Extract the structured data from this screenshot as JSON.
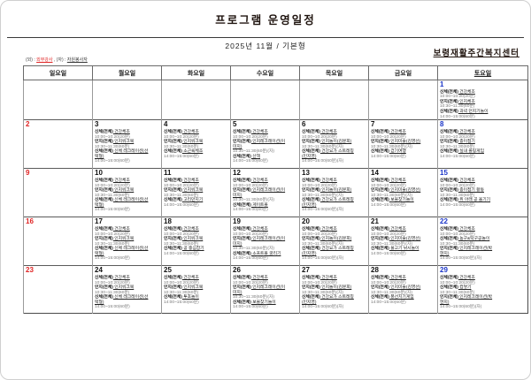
{
  "page": {
    "title": "프로그램 운영일정",
    "subtitle": "2025년 11월 / 기본형",
    "center_name": "보령재활주간복지센터",
    "legend": [
      {
        "prefix": "(외) : ",
        "term": "외부강사"
      },
      {
        "prefix": " , (자) : ",
        "term": "자원봉사자"
      }
    ]
  },
  "colors": {
    "sunday_red": "#e02424",
    "saturday_blue": "#1c36c8",
    "time_gray": "#777777"
  },
  "calendar": {
    "day_headers": [
      {
        "label": "일요일",
        "type": "sun"
      },
      {
        "label": "월요일",
        "type": "wk"
      },
      {
        "label": "화요일",
        "type": "wk"
      },
      {
        "label": "수요일",
        "type": "wk"
      },
      {
        "label": "목요일",
        "type": "wk"
      },
      {
        "label": "금요일",
        "type": "wk"
      },
      {
        "label": "토요일",
        "type": "sat"
      }
    ],
    "weeks": [
      [
        {
          "d": "",
          "c": "sun",
          "lines": []
        },
        {
          "d": "",
          "c": "wk",
          "lines": []
        },
        {
          "d": "",
          "c": "wk",
          "lines": []
        },
        {
          "d": "",
          "c": "wk",
          "lines": []
        },
        {
          "d": "",
          "c": "wk",
          "lines": []
        },
        {
          "d": "",
          "c": "wk",
          "lines": []
        },
        {
          "d": "1",
          "c": "sat",
          "lines": [
            [
              "p",
              "신체(전체)",
              "건강체조"
            ],
            [
              "t",
              "10:00~10:20(20분)"
            ],
            [
              "p",
              "인지(전체)",
              "인지체조"
            ],
            [
              "t",
              "10:30~11:30(60분)"
            ],
            [
              "p",
              "신체(전체)",
              "과녁 던지기놀이"
            ],
            [
              "t",
              "14:00~15:00(60분)"
            ]
          ]
        }
      ],
      [
        {
          "d": "2",
          "c": "sun",
          "lines": []
        },
        {
          "d": "3",
          "c": "wk",
          "lines": [
            [
              "p",
              "신체(전체)",
              "건강체조"
            ],
            [
              "t",
              "10:00~10:20(20분)"
            ],
            [
              "p",
              "인지(전체)",
              "인지워크북"
            ],
            [
              "t",
              "10:30~11:30(60분)"
            ],
            [
              "p",
              "신체(전체)",
              "신체 레크레이션(선"
            ],
            [
              "w",
              "택형)"
            ],
            [
              "t",
              "14:00~15:00(60분)"
            ]
          ]
        },
        {
          "d": "4",
          "c": "wk",
          "lines": [
            [
              "p",
              "신체(전체)",
              "건강체조"
            ],
            [
              "t",
              "10:00~10:20(20분)"
            ],
            [
              "p",
              "인지(전체)",
              "인지워크북"
            ],
            [
              "t",
              "10:30~11:30(60분)"
            ],
            [
              "p",
              "신체(전체)",
              "소근육체조"
            ],
            [
              "t",
              "14:00~15:00(60분)"
            ]
          ]
        },
        {
          "d": "5",
          "c": "wk",
          "lines": [
            [
              "p",
              "신체(전체)",
              "건강체조"
            ],
            [
              "t",
              "10:00~10:20(20분)"
            ],
            [
              "p",
              "인지(전체)",
              "인지레크레이션(이"
            ],
            [
              "w",
              "미지)"
            ],
            [
              "t",
              "10:30~11:30(60분)(자)"
            ],
            [
              "p",
              "신체(전체)",
              "산책"
            ],
            [
              "t",
              "14:00~15:00(60분)"
            ]
          ]
        },
        {
          "d": "6",
          "c": "wk",
          "lines": [
            [
              "p",
              "신체(전체)",
              "건강체조"
            ],
            [
              "t",
              "10:00~10:20(20분)"
            ],
            [
              "p",
              "인지(전체)",
              "인지놀이(김문희)"
            ],
            [
              "t",
              "10:30~11:30(60분)(자)"
            ],
            [
              "p",
              "신체(전체)",
              "건강요가 스트레칭"
            ],
            [
              "w",
              "(민지영)"
            ],
            [
              "t",
              "14:00~15:00(60분)(자)"
            ]
          ]
        },
        {
          "d": "7",
          "c": "wk",
          "lines": [
            [
              "p",
              "신체(전체)",
              "건강체조"
            ],
            [
              "t",
              "10:00~10:20(20분)"
            ],
            [
              "p",
              "인지(전체)",
              "인지미술(김영선)"
            ],
            [
              "t",
              "10:30~11:30(60분)(자)"
            ],
            [
              "p",
              "신체(전체)",
              "걷기여행"
            ],
            [
              "t",
              "14:00~15:00(60분)"
            ]
          ]
        },
        {
          "d": "8",
          "c": "sat",
          "lines": [
            [
              "p",
              "신체(전체)",
              "건강체조"
            ],
            [
              "t",
              "10:00~10:20(20분)"
            ],
            [
              "p",
              "인지(전체)",
              "종이접기"
            ],
            [
              "t",
              "10:30~11:30(60분)"
            ],
            [
              "p",
              "신체(전체)",
              "실내 볼링게임"
            ],
            [
              "t",
              "14:00~15:00(60분)"
            ]
          ]
        }
      ],
      [
        {
          "d": "9",
          "c": "sun",
          "lines": []
        },
        {
          "d": "10",
          "c": "wk",
          "lines": [
            [
              "p",
              "신체(전체)",
              "건강체조"
            ],
            [
              "t",
              "10:00~10:20(20분)"
            ],
            [
              "p",
              "인지(전체)",
              "인지워크북"
            ],
            [
              "t",
              "10:30~11:30(60분)"
            ],
            [
              "p",
              "신체(전체)",
              "신체 레크레이션(선"
            ],
            [
              "w",
              "택형)"
            ],
            [
              "t",
              "14:00~15:00(60분)"
            ]
          ]
        },
        {
          "d": "11",
          "c": "wk",
          "lines": [
            [
              "p",
              "신체(전체)",
              "건강체조"
            ],
            [
              "t",
              "10:00~10:20(20분)"
            ],
            [
              "p",
              "인지(전체)",
              "인지워크북"
            ],
            [
              "t",
              "10:30~11:30(60분)"
            ],
            [
              "p",
              "신체(전체)",
              "고리던지기"
            ],
            [
              "t",
              "14:00~15:00(60분)"
            ]
          ]
        },
        {
          "d": "12",
          "c": "wk",
          "lines": [
            [
              "p",
              "신체(전체)",
              "건강체조"
            ],
            [
              "t",
              "10:00~10:20(20분)"
            ],
            [
              "p",
              "인지(전체)",
              "인지레크레이션(이"
            ],
            [
              "w",
              "미지)"
            ],
            [
              "t",
              "10:30~11:30(60분)(자)"
            ],
            [
              "p",
              "신체(전체)",
              "게이트볼"
            ],
            [
              "t",
              "14:00~15:00(60분)"
            ]
          ]
        },
        {
          "d": "13",
          "c": "wk",
          "lines": [
            [
              "p",
              "신체(전체)",
              "건강체조"
            ],
            [
              "t",
              "10:00~10:20(20분)"
            ],
            [
              "p",
              "인지(전체)",
              "인지놀이(김문희)"
            ],
            [
              "t",
              "10:30~11:30(60분)(자)"
            ],
            [
              "p",
              "신체(전체)",
              "건강요가 스트레칭"
            ],
            [
              "w",
              "(민지영)"
            ],
            [
              "t",
              "14:00~15:00(60분)(자)"
            ]
          ]
        },
        {
          "d": "14",
          "c": "wk",
          "lines": [
            [
              "p",
              "신체(전체)",
              "건강체조"
            ],
            [
              "t",
              "10:00~10:20(20분)"
            ],
            [
              "p",
              "인지(전체)",
              "인지미술(김영선)"
            ],
            [
              "t",
              "10:30~11:30(60분)(자)"
            ],
            [
              "p",
              "신체(전체)",
              "보물찾기놀이"
            ],
            [
              "t",
              "14:00~15:00(60분)"
            ]
          ]
        },
        {
          "d": "15",
          "c": "sat",
          "lines": [
            [
              "p",
              "신체(전체)",
              "건강체조"
            ],
            [
              "t",
              "10:00~10:20(20분)"
            ],
            [
              "p",
              "인지(전체)",
              "종이접기 활동"
            ],
            [
              "t",
              "10:30~11:30(60분)"
            ],
            [
              "p",
              "신체(전체)",
              "위 아래 공 옮기기"
            ],
            [
              "t",
              "14:00~15:00(60분)"
            ]
          ]
        }
      ],
      [
        {
          "d": "16",
          "c": "sun",
          "lines": []
        },
        {
          "d": "17",
          "c": "wk",
          "lines": [
            [
              "p",
              "신체(전체)",
              "건강체조"
            ],
            [
              "t",
              "10:00~10:20(20분)"
            ],
            [
              "p",
              "인지(전체)",
              "인지워크북"
            ],
            [
              "t",
              "10:30~11:30(60분)"
            ],
            [
              "p",
              "신체(전체)",
              "신체 레크레이션(선"
            ],
            [
              "w",
              "택형)"
            ],
            [
              "t",
              "14:00~15:00(60분)"
            ]
          ]
        },
        {
          "d": "18",
          "c": "wk",
          "lines": [
            [
              "p",
              "신체(전체)",
              "건강체조"
            ],
            [
              "t",
              "10:00~10:20(20분)"
            ],
            [
              "p",
              "인지(전체)",
              "인지워크북"
            ],
            [
              "t",
              "10:30~11:30(60분)"
            ],
            [
              "p",
              "신체(전체)",
              "공 중심잡기"
            ],
            [
              "t",
              "14:00~15:00(60분)"
            ]
          ]
        },
        {
          "d": "19",
          "c": "wk",
          "lines": [
            [
              "p",
              "신체(전체)",
              "건강체조"
            ],
            [
              "t",
              "10:00~10:20(20분)"
            ],
            [
              "p",
              "인지(전체)",
              "인지레크레이션(이"
            ],
            [
              "w",
              "미지)"
            ],
            [
              "t",
              "10:30~11:30(60분)(자)"
            ],
            [
              "p",
              "신체(전체)",
              "소프트볼 굴리기"
            ],
            [
              "t",
              "14:00~15:00(60분)"
            ]
          ]
        },
        {
          "d": "20",
          "c": "wk",
          "lines": [
            [
              "p",
              "신체(전체)",
              "건강체조"
            ],
            [
              "t",
              "10:00~10:20(20분)"
            ],
            [
              "p",
              "인지(전체)",
              "인지놀이(김문희)"
            ],
            [
              "t",
              "10:30~11:30(60분)(자)"
            ],
            [
              "p",
              "신체(전체)",
              "건강요가 스트레칭"
            ],
            [
              "w",
              "(민지영)"
            ],
            [
              "t",
              "14:00~15:00(60분)(자)"
            ]
          ]
        },
        {
          "d": "21",
          "c": "wk",
          "lines": [
            [
              "p",
              "신체(전체)",
              "건강체조"
            ],
            [
              "t",
              "10:00~10:20(20분)"
            ],
            [
              "p",
              "인지(전체)",
              "인지미술(김영선)"
            ],
            [
              "t",
              "10:30~11:30(60분)(자)"
            ],
            [
              "p",
              "신체(전체)",
              "물고기 낚시놀이"
            ],
            [
              "t",
              "14:00~15:00(60분)"
            ]
          ]
        },
        {
          "d": "22",
          "c": "sat",
          "lines": [
            [
              "p",
              "신체(전체)",
              "건강체조"
            ],
            [
              "t",
              "10:00~10:20(20분)"
            ],
            [
              "p",
              "신체(전체)",
              "농구&탁구공놀이"
            ],
            [
              "t",
              "10:30~11:30(60분)"
            ],
            [
              "p",
              "인지(전체)",
              "인지레크레이션(박"
            ],
            [
              "w",
              "현지)"
            ],
            [
              "t",
              "14:00~15:00(60분)(자)"
            ]
          ]
        }
      ],
      [
        {
          "d": "23",
          "c": "sun",
          "lines": []
        },
        {
          "d": "24",
          "c": "wk",
          "lines": [
            [
              "p",
              "신체(전체)",
              "건강체조"
            ],
            [
              "t",
              "10:00~10:20(20분)"
            ],
            [
              "p",
              "인지(전체)",
              "인지워크북"
            ],
            [
              "t",
              "10:30~11:30(60분)"
            ],
            [
              "p",
              "신체(전체)",
              "신체 레크레이션(선"
            ],
            [
              "w",
              "택형)"
            ],
            [
              "t",
              "14:00~15:00(60분)"
            ]
          ]
        },
        {
          "d": "25",
          "c": "wk",
          "lines": [
            [
              "p",
              "신체(전체)",
              "건강체조"
            ],
            [
              "t",
              "10:00~10:20(20분)"
            ],
            [
              "p",
              "인지(전체)",
              "인지워크북"
            ],
            [
              "t",
              "10:30~11:30(60분)"
            ],
            [
              "p",
              "신체(전체)",
              "투호놀이"
            ],
            [
              "t",
              "14:00~15:00(60분)"
            ]
          ]
        },
        {
          "d": "26",
          "c": "wk",
          "lines": [
            [
              "p",
              "신체(전체)",
              "건강체조"
            ],
            [
              "t",
              "10:00~10:20(20분)"
            ],
            [
              "p",
              "인지(전체)",
              "인지레크레이션(이"
            ],
            [
              "w",
              "미지)"
            ],
            [
              "t",
              "10:30~11:30(60분)(자)"
            ],
            [
              "p",
              "신체(전체)",
              "보물찾기놀이"
            ],
            [
              "t",
              "14:00~15:00(60분)"
            ]
          ]
        },
        {
          "d": "27",
          "c": "wk",
          "lines": [
            [
              "p",
              "신체(전체)",
              "건강체조"
            ],
            [
              "t",
              "10:00~10:20(20분)"
            ],
            [
              "p",
              "인지(전체)",
              "인지놀이(김문희)"
            ],
            [
              "t",
              "10:30~11:30(60분)(자)"
            ],
            [
              "p",
              "신체(전체)",
              "건강요가 스트레칭"
            ],
            [
              "w",
              "(민지영)"
            ],
            [
              "t",
              "14:00~15:00(60분)(자)"
            ]
          ]
        },
        {
          "d": "28",
          "c": "wk",
          "lines": [
            [
              "p",
              "신체(전체)",
              "건강체조"
            ],
            [
              "t",
              "10:00~10:20(20분)"
            ],
            [
              "p",
              "인지(전체)",
              "인지미술(김영선)"
            ],
            [
              "t",
              "10:30~11:30(60분)(자)"
            ],
            [
              "p",
              "신체(전체)",
              "풍선치기게임"
            ],
            [
              "t",
              "14:00~15:00(60분)"
            ]
          ]
        },
        {
          "d": "29",
          "c": "sat",
          "lines": [
            [
              "p",
              "신체(전체)",
              "건강체조"
            ],
            [
              "t",
              "10:00~10:20(20분)"
            ],
            [
              "p",
              "신체(전체)",
              "컵쌓기"
            ],
            [
              "t",
              "10:30~11:30(60분)"
            ],
            [
              "p",
              "인지(전체)",
              "인지레크레이션(박"
            ],
            [
              "w",
              "현지)"
            ],
            [
              "t",
              "14:00~15:00(60분)(자)"
            ]
          ]
        }
      ]
    ]
  }
}
